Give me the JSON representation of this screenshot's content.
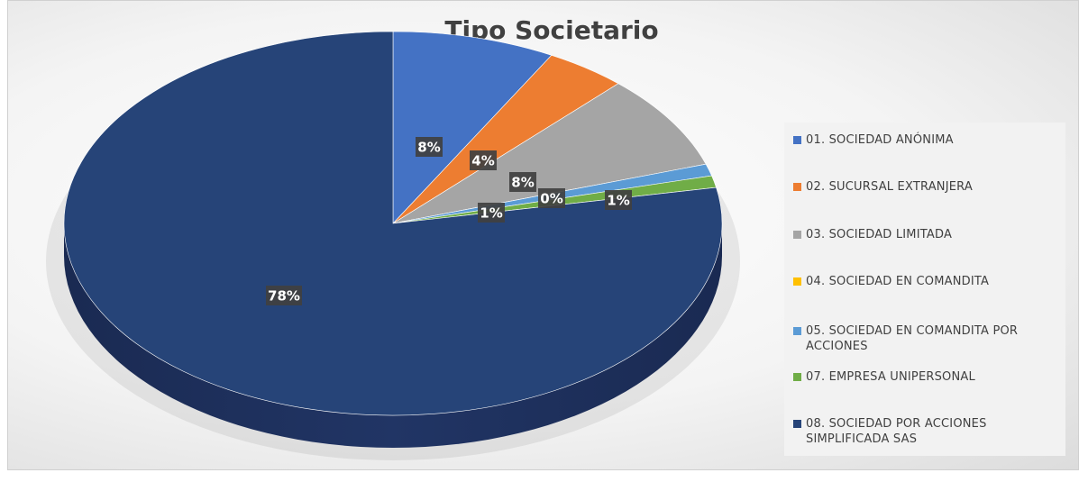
{
  "chart_data": {
    "type": "pie",
    "title": "Tipo Societario",
    "categories": [
      "01. SOCIEDAD ANÓNIMA",
      "02. SUCURSAL EXTRANJERA",
      "03. SOCIEDAD LIMITADA",
      "04. SOCIEDAD EN COMANDITA",
      "05. SOCIEDAD EN COMANDITA POR ACCIONES",
      "07. EMPRESA UNIPERSONAL",
      "08. SOCIEDAD POR ACCIONES SIMPLIFICADA SAS"
    ],
    "values": [
      8,
      4,
      8,
      0,
      1,
      1,
      78
    ],
    "value_labels": [
      "8%",
      "4%",
      "8%",
      "0%",
      "1%",
      "1%",
      "78%"
    ],
    "colors": [
      "#4472c4",
      "#ed7d31",
      "#a5a5a5",
      "#ffc000",
      "#5b9bd5",
      "#70ad47",
      "#264478"
    ],
    "legend": "right"
  }
}
